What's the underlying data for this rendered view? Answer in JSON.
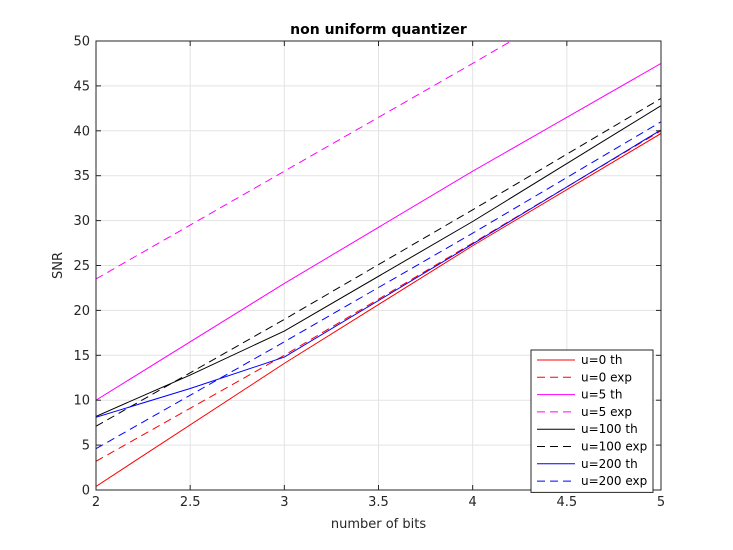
{
  "chart_data": {
    "type": "line",
    "title": "non uniform quantizer",
    "xlabel": "number of bits",
    "ylabel": "SNR",
    "xlim": [
      2,
      5
    ],
    "ylim": [
      0,
      50
    ],
    "xticks": [
      "2",
      "2.5",
      "3",
      "3.5",
      "4",
      "4.5",
      "5"
    ],
    "yticks": [
      "0",
      "5",
      "10",
      "15",
      "20",
      "25",
      "30",
      "35",
      "40",
      "45",
      "50"
    ],
    "grid": true,
    "legend_position": "bottom-right",
    "series": [
      {
        "name": "u=0 th",
        "color": "#ff0000",
        "dash": "solid",
        "x": [
          2,
          3,
          4,
          5
        ],
        "y": [
          0.4,
          14.1,
          27.2,
          39.7
        ]
      },
      {
        "name": "u=0 exp",
        "color": "#ff0000",
        "dash": "dashed",
        "x": [
          2,
          3,
          4,
          5
        ],
        "y": [
          3.2,
          15.0,
          27.5,
          40.0
        ]
      },
      {
        "name": "u=5 th",
        "color": "#ff00ff",
        "dash": "solid",
        "x": [
          2,
          3,
          4,
          5
        ],
        "y": [
          10.0,
          23.0,
          35.5,
          47.5
        ]
      },
      {
        "name": "u=5 exp",
        "color": "#ff00ff",
        "dash": "dashed",
        "x": [
          2,
          3,
          4,
          4.27
        ],
        "y": [
          23.5,
          35.5,
          47.5,
          50.8
        ]
      },
      {
        "name": "u=100 th",
        "color": "#000000",
        "dash": "solid",
        "x": [
          2,
          2.5,
          3,
          4,
          5
        ],
        "y": [
          8.2,
          12.8,
          17.7,
          29.9,
          42.8
        ]
      },
      {
        "name": "u=100 exp",
        "color": "#000000",
        "dash": "dashed",
        "x": [
          2,
          3,
          4,
          5
        ],
        "y": [
          7.1,
          19.0,
          31.2,
          43.6
        ]
      },
      {
        "name": "u=200 th",
        "color": "#0000ff",
        "dash": "solid",
        "x": [
          2,
          2.5,
          3,
          4,
          5
        ],
        "y": [
          8.1,
          11.3,
          14.8,
          27.4,
          40.1
        ]
      },
      {
        "name": "u=200 exp",
        "color": "#0000ff",
        "dash": "dashed",
        "x": [
          2,
          3,
          4,
          5
        ],
        "y": [
          4.6,
          16.5,
          28.6,
          41.0
        ]
      }
    ]
  }
}
